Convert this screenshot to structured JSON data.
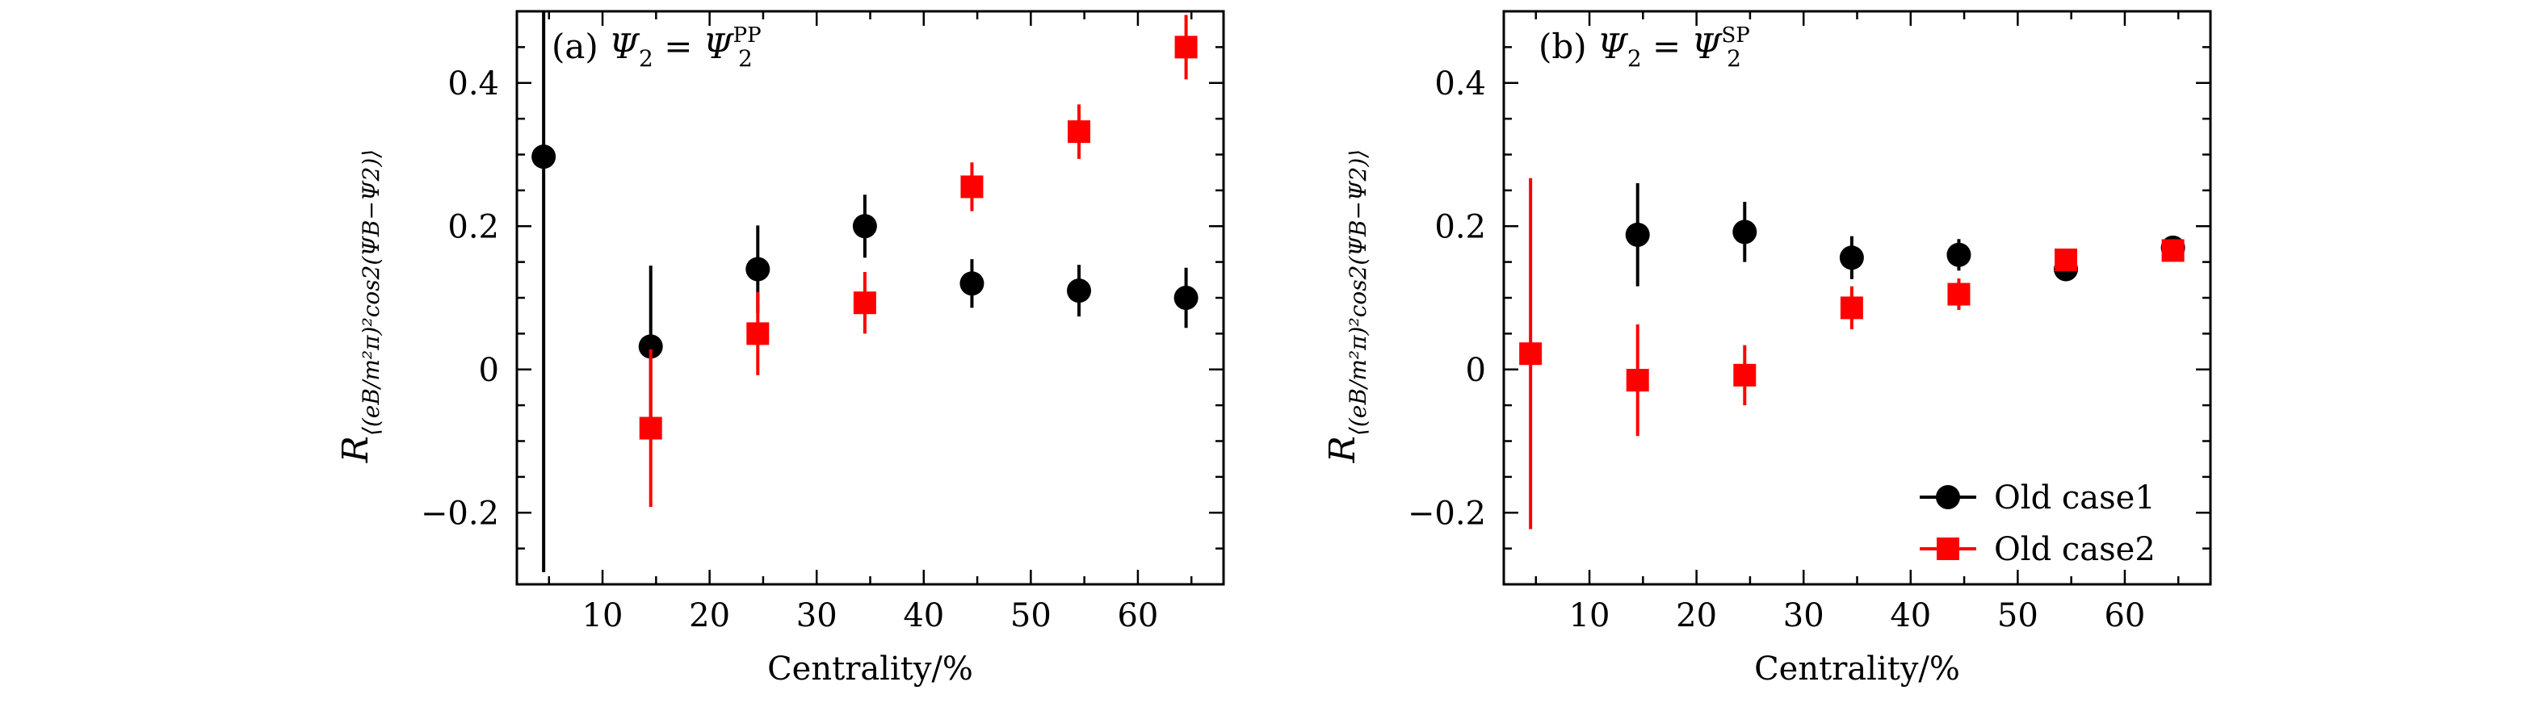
{
  "chart_data": [
    {
      "type": "scatter",
      "panel_label": "(a)",
      "title": "Ψ2 = Ψ2PP",
      "title_parts": {
        "lhs": "Ψ",
        "lhs_sub": "2",
        "eq": "=",
        "rhs": "Ψ",
        "rhs_sub": "2",
        "rhs_sup": "PP"
      },
      "xlabel": "Centrality/%",
      "ylabel": "R⟨(eB/mπ²)²cos2(ΨB−Ψ2)⟩",
      "ylabel_parts": {
        "main": "R",
        "sub": "⟨(eB/m²π)²cos2(ΨB−Ψ2)⟩"
      },
      "xlim": [
        2,
        68
      ],
      "ylim": [
        -0.3,
        0.5
      ],
      "xticks": [
        10,
        20,
        30,
        40,
        50,
        60
      ],
      "xtick_labels": [
        "10",
        "20",
        "30",
        "40",
        "50",
        "60"
      ],
      "yticks": [
        -0.2,
        0,
        0.2,
        0.4
      ],
      "ytick_labels": [
        "−0.2",
        "0",
        "0.2",
        "0.4"
      ],
      "series": [
        {
          "name": "Old case1",
          "marker": "circle",
          "color": "#000000",
          "x": [
            4.5,
            14.5,
            24.5,
            34.5,
            44.5,
            54.5,
            64.5
          ],
          "y": [
            0.297,
            0.032,
            0.14,
            0.2,
            0.12,
            0.11,
            0.1
          ],
          "err": [
            0.58,
            0.113,
            0.061,
            0.044,
            0.034,
            0.036,
            0.042
          ]
        },
        {
          "name": "Old case2",
          "marker": "square",
          "color": "#ff0000",
          "x": [
            14.5,
            24.5,
            34.5,
            44.5,
            54.5,
            64.5
          ],
          "y": [
            -0.082,
            0.05,
            0.093,
            0.255,
            0.332,
            0.45
          ],
          "err": [
            0.11,
            0.058,
            0.043,
            0.034,
            0.038,
            0.045
          ]
        }
      ]
    },
    {
      "type": "scatter",
      "panel_label": "(b)",
      "title": "Ψ2 = Ψ2SP",
      "title_parts": {
        "lhs": "Ψ",
        "lhs_sub": "2",
        "eq": "=",
        "rhs": "Ψ",
        "rhs_sub": "2",
        "rhs_sup": "SP"
      },
      "xlabel": "Centrality/%",
      "ylabel": "R⟨(eB/mπ²)²cos2(ΨB−Ψ2)⟩",
      "ylabel_parts": {
        "main": "R",
        "sub": "⟨(eB/m²π)²cos2(ΨB−Ψ2)⟩"
      },
      "xlim": [
        2,
        68
      ],
      "ylim": [
        -0.3,
        0.5
      ],
      "xticks": [
        10,
        20,
        30,
        40,
        50,
        60
      ],
      "xtick_labels": [
        "10",
        "20",
        "30",
        "40",
        "50",
        "60"
      ],
      "yticks": [
        -0.2,
        0,
        0.2,
        0.4
      ],
      "ytick_labels": [
        "−0.2",
        "0",
        "0.2",
        "0.4"
      ],
      "legend_position": "bottom-right",
      "series": [
        {
          "name": "Old case1",
          "marker": "circle",
          "color": "#000000",
          "x": [
            14.5,
            24.5,
            34.5,
            44.5,
            54.5,
            64.5
          ],
          "y": [
            0.188,
            0.192,
            0.156,
            0.16,
            0.14,
            0.17
          ],
          "err": [
            0.072,
            0.042,
            0.03,
            0.022,
            0.015,
            0.01
          ]
        },
        {
          "name": "Old case2",
          "marker": "square",
          "color": "#ff0000",
          "x": [
            4.5,
            14.5,
            24.5,
            34.5,
            44.5,
            54.5,
            64.5
          ],
          "y": [
            0.022,
            -0.015,
            -0.008,
            0.086,
            0.105,
            0.153,
            0.166
          ],
          "err": [
            0.245,
            0.078,
            0.042,
            0.03,
            0.022,
            0.015,
            0.01
          ]
        }
      ]
    }
  ]
}
